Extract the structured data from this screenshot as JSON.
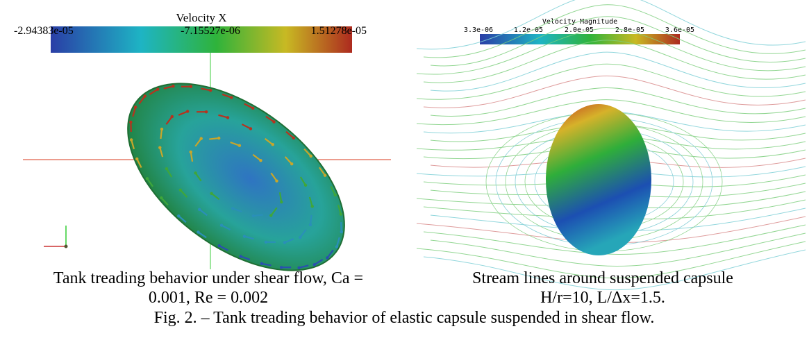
{
  "figure": {
    "panels": [
      {
        "colorbar": {
          "title": "Velocity X",
          "labels": [
            "-2.94383e-05",
            "-7.15527e-06",
            "1.51278e-05"
          ]
        },
        "caption": [
          "Tank treading behavior under shear flow, Ca =",
          "0.001, Re = 0.002"
        ]
      },
      {
        "colorbar": {
          "title": "Velocity Magnitude",
          "labels": [
            "3.3e-06",
            "1.2e-05",
            "2.0e-05",
            "2.8e-05",
            "3.6e-05"
          ]
        },
        "caption": [
          "Stream lines around suspended capsule",
          "H/r=10, L/Δx=1.5."
        ]
      }
    ],
    "caption": "Fig. 2. – Tank treading behavior of elastic capsule suspended in shear flow."
  }
}
